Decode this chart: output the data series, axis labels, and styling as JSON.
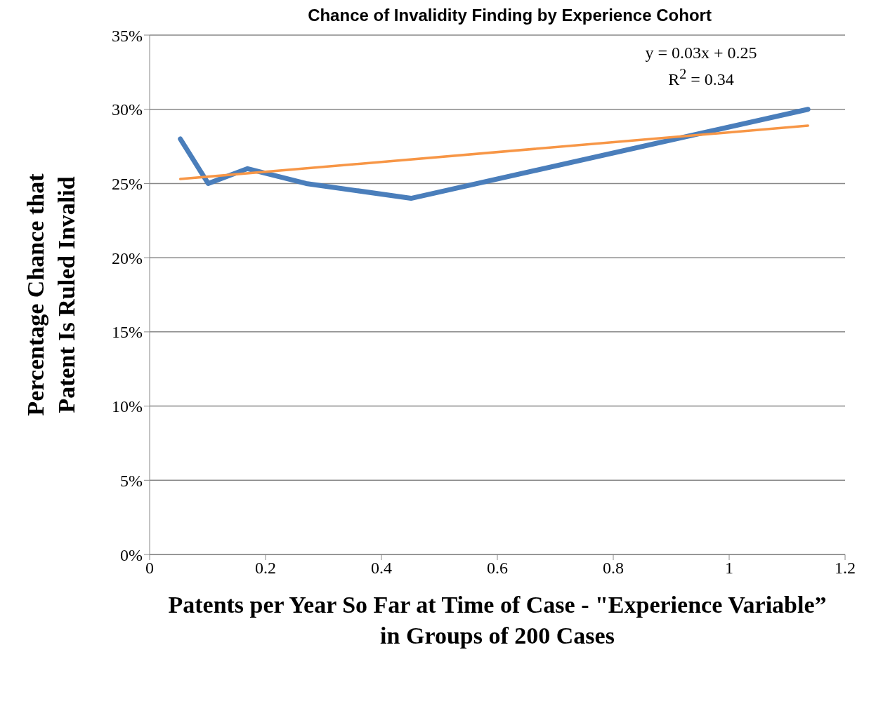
{
  "chart_data": {
    "type": "line",
    "title": "Chance of Invalidity Finding by Experience Cohort",
    "xlabel": "Patents per Year So Far at Time of Case - \"Experience Variable”\nin Groups of 200 Cases",
    "ylabel": "Percentage Chance that\nPatent Is Ruled Invalid",
    "annotations": [
      "y = 0.03x + 0.25",
      "R$^{2}$ = 0.34"
    ],
    "series": [
      {
        "color": "#4a7ebb",
        "x": [
          0.053,
          0.101,
          0.169,
          0.27,
          0.451,
          1.136
        ],
        "values": [
          0.28,
          0.25,
          0.26,
          0.25,
          0.24,
          0.3
        ]
      },
      {
        "color": "#f79646",
        "x": [
          0.053,
          1.136
        ],
        "values": [
          0.253,
          0.289
        ]
      }
    ],
    "xlim": [
      0,
      1.2
    ],
    "xticks": [
      0,
      0.2,
      0.4,
      0.6,
      0.8,
      1,
      1.2
    ],
    "ylim": [
      0,
      0.35
    ],
    "yticks": [
      {
        "value": 0,
        "label": "0%"
      },
      {
        "value": 0.05,
        "label": "5%"
      },
      {
        "value": 0.1,
        "label": "10%"
      },
      {
        "value": 0.15,
        "label": "15%"
      },
      {
        "value": 0.2,
        "label": "20%"
      },
      {
        "value": 0.25,
        "label": "25%"
      },
      {
        "value": 0.3,
        "label": "30%"
      },
      {
        "value": 0.35,
        "label": "35%"
      }
    ],
    "grid": "y",
    "legend": false,
    "marker": "none",
    "line_style": "solid"
  }
}
